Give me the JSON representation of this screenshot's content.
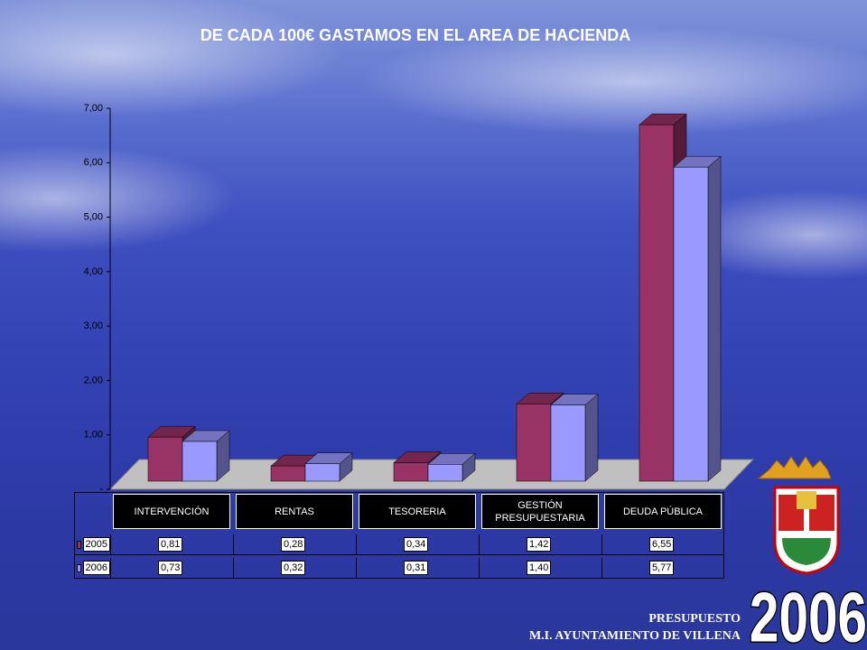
{
  "chart_data": {
    "type": "bar3d",
    "title": "DE CADA 100€ GASTAMOS EN EL AREA DE HACIENDA",
    "categories": [
      "INTERVENCIÓN",
      "RENTAS",
      "TESORERIA",
      "GESTIÓN PRESUPUESTARIA",
      "DEUDA PÚBLICA"
    ],
    "series": [
      {
        "name": "2005",
        "color": "#993366",
        "values": [
          0.81,
          0.28,
          0.34,
          1.42,
          6.55
        ],
        "value_labels": [
          "0,81",
          "0,28",
          "0,34",
          "1,42",
          "6,55"
        ]
      },
      {
        "name": "2006",
        "color": "#9999ff",
        "values": [
          0.73,
          0.32,
          0.31,
          1.4,
          5.77
        ],
        "value_labels": [
          "0,73",
          "0,32",
          "0,31",
          "1,40",
          "5,77"
        ]
      }
    ],
    "ylim": [
      0,
      7
    ],
    "yticks": [
      {
        "value": 0,
        "label": "-"
      },
      {
        "value": 1,
        "label": "1,00"
      },
      {
        "value": 2,
        "label": "2,00"
      },
      {
        "value": 3,
        "label": "3,00"
      },
      {
        "value": 4,
        "label": "4,00"
      },
      {
        "value": 5,
        "label": "5,00"
      },
      {
        "value": 6,
        "label": "6,00"
      },
      {
        "value": 7,
        "label": "7,00"
      }
    ]
  },
  "footer": {
    "line1": "PRESUPUESTO",
    "line2": "M.I. AYUNTAMIENTO DE VILLENA",
    "year": "2006"
  }
}
